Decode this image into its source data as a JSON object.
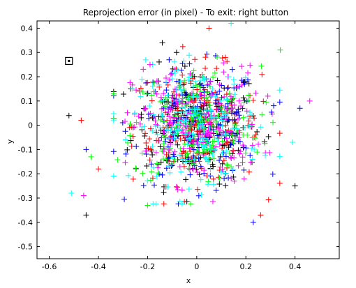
{
  "chart_data": {
    "type": "scatter",
    "title": "Reprojection error (in pixel) - To exit: right button",
    "xlabel": "x",
    "ylabel": "y",
    "xlim": [
      -0.65,
      0.58
    ],
    "ylim": [
      -0.55,
      0.43
    ],
    "x_ticks": [
      -0.6,
      -0.4,
      -0.2,
      0,
      0.2,
      0.4
    ],
    "x_tick_labels": [
      "-0.6",
      "-0.4",
      "-0.2",
      "0",
      "0.2",
      "0.4"
    ],
    "y_ticks": [
      0.4,
      0.3,
      0.2,
      0.1,
      0,
      -0.1,
      -0.2,
      -0.3,
      -0.4,
      -0.5
    ],
    "y_tick_labels": [
      "0.4",
      "0.3",
      "0.2",
      "0.1",
      "0",
      "-0.1",
      "-0.2",
      "-0.3",
      "-0.4",
      "-0.5"
    ],
    "grid": false,
    "marker": "+",
    "series_colors": [
      "#000000",
      "#ff0000",
      "#0000ff",
      "#00ff00",
      "#ff00ff",
      "#00ffff"
    ],
    "outlier_points": [
      {
        "x": -0.52,
        "y": 0.04
      },
      {
        "x": -0.47,
        "y": 0.02
      },
      {
        "x": -0.45,
        "y": -0.1
      },
      {
        "x": -0.43,
        "y": -0.13
      },
      {
        "x": -0.46,
        "y": -0.29
      },
      {
        "x": -0.51,
        "y": -0.28
      },
      {
        "x": -0.45,
        "y": -0.37
      },
      {
        "x": -0.4,
        "y": -0.18
      },
      {
        "x": 0.42,
        "y": 0.07
      },
      {
        "x": 0.34,
        "y": 0.31
      },
      {
        "x": 0.46,
        "y": 0.1
      },
      {
        "x": 0.39,
        "y": -0.07
      },
      {
        "x": 0.4,
        "y": -0.25
      },
      {
        "x": 0.26,
        "y": -0.37
      },
      {
        "x": 0.23,
        "y": -0.4
      },
      {
        "x": -0.2,
        "y": -0.33
      },
      {
        "x": -0.19,
        "y": 0.25
      },
      {
        "x": 0.14,
        "y": 0.42
      },
      {
        "x": -0.14,
        "y": 0.34
      },
      {
        "x": 0.05,
        "y": 0.4
      }
    ],
    "selected_point": {
      "x": -0.52,
      "y": 0.265
    },
    "cloud": {
      "center": [
        0.0,
        0.0
      ],
      "spread": [
        0.13,
        0.12
      ],
      "count_per_series": 190
    }
  }
}
